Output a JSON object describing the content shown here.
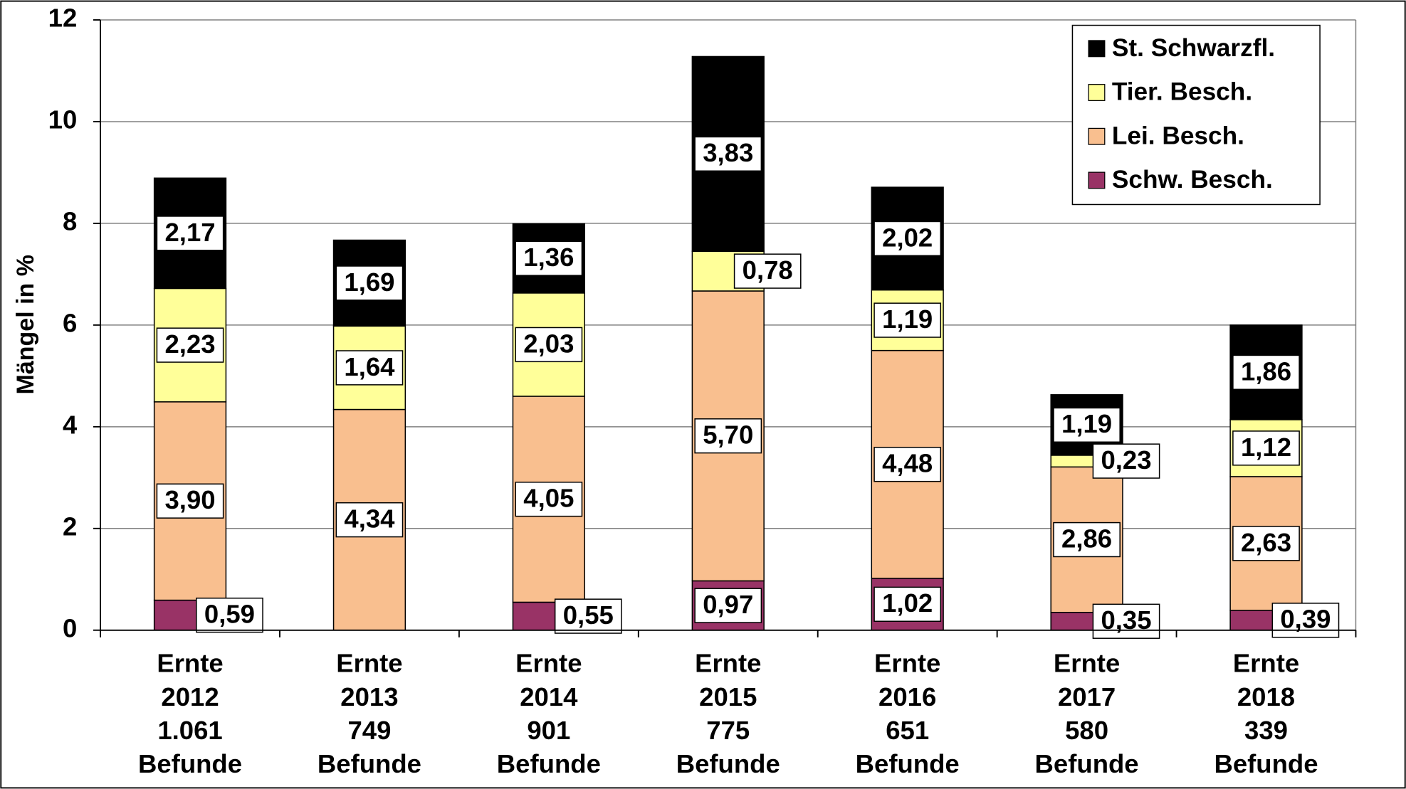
{
  "chart_data": {
    "type": "stacked_bar",
    "ylabel": "Mängel in %",
    "categories": [
      [
        "Ernte",
        "2012",
        "1.061",
        "Befunde"
      ],
      [
        "Ernte",
        "2013",
        "749",
        "Befunde"
      ],
      [
        "Ernte",
        "2014",
        "901",
        "Befunde"
      ],
      [
        "Ernte",
        "2015",
        "775",
        "Befunde"
      ],
      [
        "Ernte",
        "2016",
        "651",
        "Befunde"
      ],
      [
        "Ernte",
        "2017",
        "580",
        "Befunde"
      ],
      [
        "Ernte",
        "2018",
        "339",
        "Befunde"
      ]
    ],
    "series": [
      {
        "name": "Schw. Besch.",
        "color": "#993366",
        "values": [
          0.59,
          null,
          0.55,
          0.97,
          1.02,
          0.35,
          0.39
        ],
        "value_labels": [
          "0,59",
          null,
          "0,55",
          "0,97",
          "1,02",
          "0,35",
          "0,39"
        ]
      },
      {
        "name": "Lei. Besch.",
        "color": "#f9bf8f",
        "values": [
          3.9,
          4.34,
          4.05,
          5.7,
          4.48,
          2.86,
          2.63
        ],
        "value_labels": [
          "3,90",
          "4,34",
          "4,05",
          "5,70",
          "4,48",
          "2,86",
          "2,63"
        ]
      },
      {
        "name": "Tier. Besch.",
        "color": "#ffff99",
        "values": [
          2.23,
          1.64,
          2.03,
          0.78,
          1.19,
          0.23,
          1.12
        ],
        "value_labels": [
          "2,23",
          "1,64",
          "2,03",
          "0,78",
          "1,19",
          "0,23",
          "1,12"
        ]
      },
      {
        "name": "St. Schwarzfl.",
        "color": "#000000",
        "values": [
          2.17,
          1.69,
          1.36,
          3.83,
          2.02,
          1.19,
          1.86
        ],
        "value_labels": [
          "2,17",
          "1,69",
          "1,36",
          "3,83",
          "2,02",
          "1,19",
          "1,86"
        ]
      }
    ],
    "ylim": [
      0,
      12
    ],
    "yticks": [
      0,
      2,
      4,
      6,
      8,
      10,
      12
    ],
    "grid": true,
    "legend": "upper right"
  }
}
